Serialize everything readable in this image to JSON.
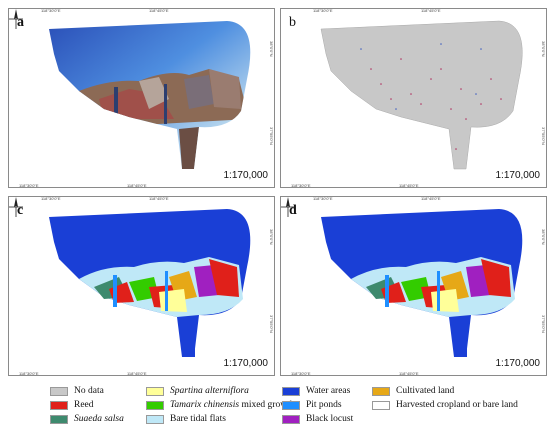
{
  "panels": [
    {
      "label": "a",
      "scale": "1:170,000",
      "type": "satellite"
    },
    {
      "label": "b",
      "scale": "1:170,000",
      "type": "samples"
    },
    {
      "label": "c",
      "scale": "1:170,000",
      "type": "classified"
    },
    {
      "label": "d",
      "scale": "1:170,000",
      "type": "classified"
    }
  ],
  "ticks": {
    "lon1": "118°30'0\"E",
    "lon2": "118°45'0\"E",
    "lat1": "38°0'0\"N",
    "lat2": "37°55'0\"N"
  },
  "legend": [
    {
      "label": "No data",
      "italic": false,
      "color": "#c8c8c8",
      "after": ""
    },
    {
      "label": "Reed",
      "italic": false,
      "color": "#e0201a",
      "after": ""
    },
    {
      "label": "Suaeda salsa",
      "italic": true,
      "color": "#3e8a6e",
      "after": ""
    },
    {
      "label": "Spartina alterniflora",
      "italic": true,
      "color": "#ffff99",
      "after": ""
    },
    {
      "label": "Tamarix chinensis",
      "italic": true,
      "color": "#33cc00",
      "after": " mixed growth"
    },
    {
      "label": "Bare tidal flats",
      "italic": false,
      "color": "#bfe8f7",
      "after": ""
    },
    {
      "label": "Water areas",
      "italic": false,
      "color": "#1a3fd6",
      "after": ""
    },
    {
      "label": "Pit ponds",
      "italic": false,
      "color": "#1f8fff",
      "after": ""
    },
    {
      "label": "Black locust",
      "italic": false,
      "color": "#a020c0",
      "after": ""
    },
    {
      "label": "Cultivated land",
      "italic": false,
      "color": "#e6a817",
      "after": ""
    },
    {
      "label": "Harvested cropland or bare land",
      "italic": false,
      "color": "#ffffff",
      "after": ""
    }
  ]
}
